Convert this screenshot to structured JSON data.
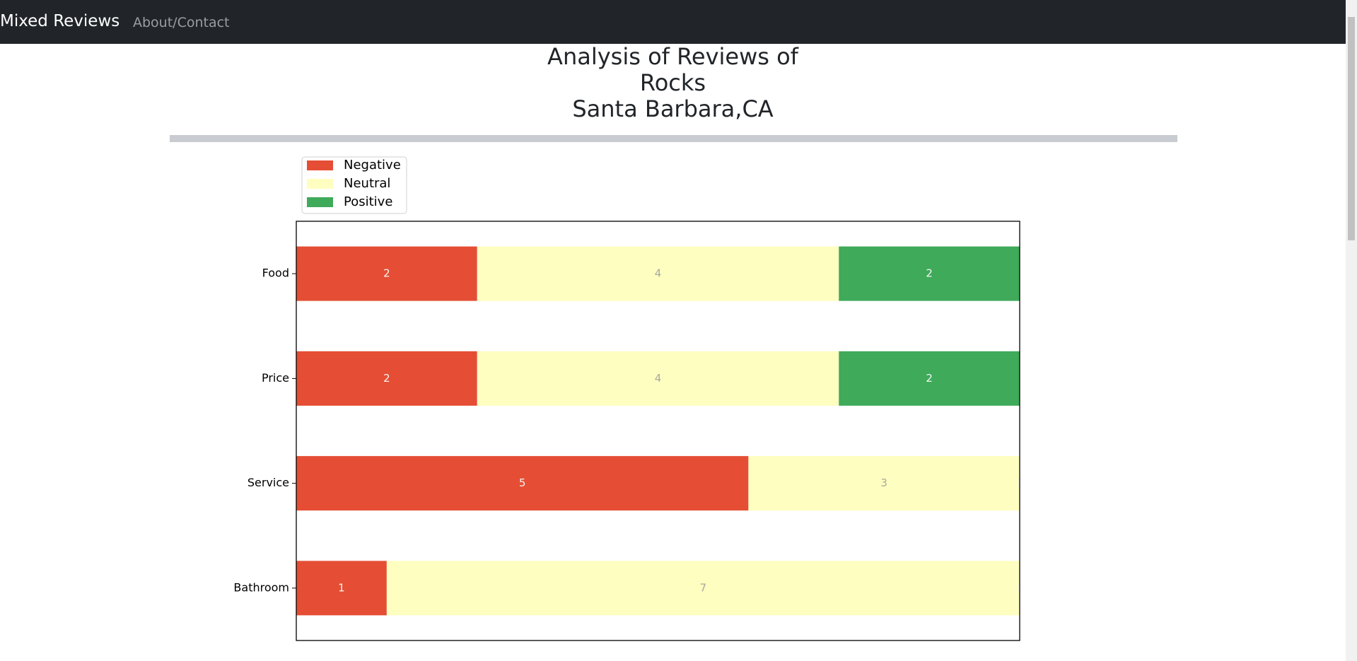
{
  "navbar": {
    "brand": "Mixed Reviews",
    "links": [
      "About/Contact"
    ]
  },
  "page": {
    "title_lines": [
      "Analysis of Reviews of",
      "Rocks",
      "Santa Barbara,CA"
    ]
  },
  "chart_data": {
    "type": "stacked_barh",
    "categories": [
      "Food",
      "Price",
      "Service",
      "Bathroom"
    ],
    "series": [
      {
        "name": "Negative",
        "color": "#e54e34",
        "values": [
          2,
          2,
          5,
          1
        ]
      },
      {
        "name": "Neutral",
        "color": "#fefec0",
        "values": [
          4,
          4,
          3,
          7
        ]
      },
      {
        "name": "Positive",
        "color": "#3faa5a",
        "values": [
          2,
          2,
          0,
          0
        ]
      }
    ],
    "xlim": [
      0,
      8
    ],
    "legend": "upper left outside"
  }
}
